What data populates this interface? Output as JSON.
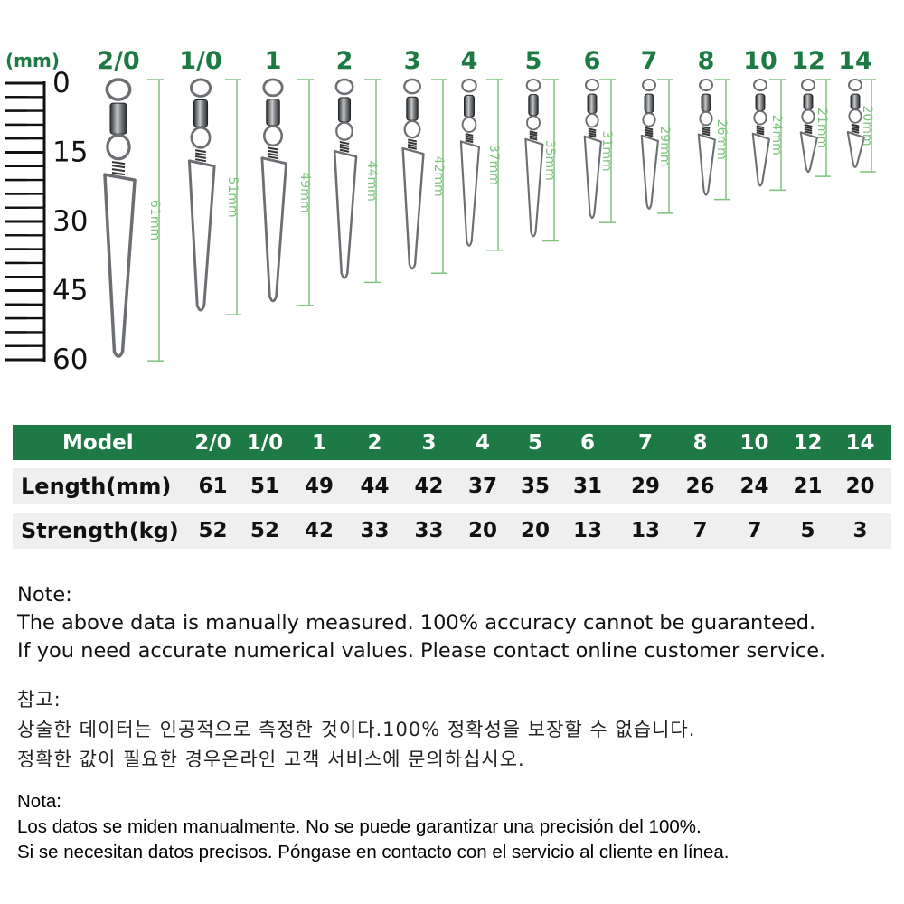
{
  "header": {
    "unit_label": "(mm)",
    "models": [
      "2/0",
      "1/0",
      "1",
      "2",
      "3",
      "4",
      "5",
      "6",
      "7",
      "8",
      "10",
      "12",
      "14"
    ]
  },
  "ruler": {
    "tick_labels": [
      "0",
      "15",
      "30",
      "45",
      "60"
    ]
  },
  "dimension_labels": [
    "61mm",
    "51mm",
    "49mm",
    "44mm",
    "42mm",
    "37mm",
    "35mm",
    "31mm",
    "29mm",
    "26mm",
    "24mm",
    "21mm",
    "20mm"
  ],
  "table": {
    "header_label": "Model",
    "models": [
      "2/0",
      "1/0",
      "1",
      "2",
      "3",
      "4",
      "5",
      "6",
      "7",
      "8",
      "10",
      "12",
      "14"
    ],
    "rows": [
      {
        "label": "Length(mm)",
        "values": [
          "61",
          "51",
          "49",
          "44",
          "42",
          "37",
          "35",
          "31",
          "29",
          "26",
          "24",
          "21",
          "20"
        ]
      },
      {
        "label": "Strength(kg)",
        "values": [
          "52",
          "52",
          "42",
          "33",
          "33",
          "20",
          "20",
          "13",
          "13",
          "7",
          "7",
          "5",
          "3"
        ]
      }
    ]
  },
  "notes": {
    "english": {
      "title": "Note:",
      "line1": "The above data is manually measured. 100% accuracy cannot be guaranteed.",
      "line2": "If you need accurate numerical values. Please contact online customer service."
    },
    "korean": {
      "title": "참고:",
      "line1": "상술한 데이터는 인공적으로 측정한 것이다.100% 정확성을 보장할 수 없습니다.",
      "line2": "정확한 값이 필요한 경우온라인 고객 서비스에 문의하십시오."
    },
    "spanish": {
      "title": "Nota:",
      "line1": "Los datos se miden manualmente. No se puede garantizar una precisión del 100%.",
      "line2": "Si se necesitan datos precisos. Póngase en contacto con el servicio al cliente en línea."
    }
  },
  "colors": {
    "accent_green": "#1d7a45",
    "dimension_green": "#7ec27e",
    "ruler_black": "#111111",
    "metal": "#6b6f73"
  }
}
